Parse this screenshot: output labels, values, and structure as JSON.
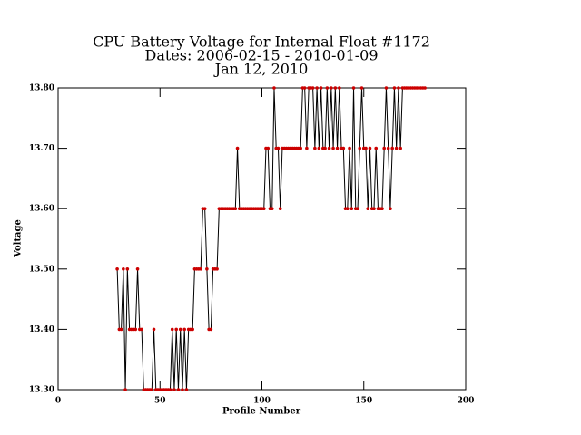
{
  "chart_data": {
    "type": "line",
    "title": "CPU Battery Voltage for Internal Float #1172",
    "subtitle": "Dates:  2006-02-15 -  2010-01-09",
    "annotations": [
      "Jan 12, 2010"
    ],
    "xlabel": "Profile Number",
    "ylabel": "Voltage",
    "xlim": [
      0,
      200
    ],
    "xticks": [
      0,
      50,
      100,
      150,
      200
    ],
    "ylim": [
      13.3,
      13.8
    ],
    "yticks": [
      {
        "value": 13.3,
        "label": "13.30"
      },
      {
        "value": 13.4,
        "label": "13.40"
      },
      {
        "value": 13.5,
        "label": "13.50"
      },
      {
        "value": 13.6,
        "label": "13.60"
      },
      {
        "value": 13.7,
        "label": "13.70"
      },
      {
        "value": 13.8,
        "label": "13.80"
      }
    ],
    "grid": false,
    "series": [
      {
        "color": "#000000",
        "marker_color": "#cc0000",
        "x": [
          29,
          30,
          31,
          32,
          33,
          34,
          35,
          36,
          37,
          38,
          39,
          40,
          41,
          42,
          43,
          44,
          45,
          46,
          47,
          48,
          49,
          50,
          51,
          52,
          53,
          54,
          55,
          56,
          57,
          58,
          59,
          60,
          61,
          62,
          63,
          64,
          65,
          66,
          67,
          68,
          69,
          70,
          71,
          72,
          73,
          74,
          75,
          76,
          77,
          78,
          79,
          80,
          81,
          82,
          83,
          84,
          85,
          86,
          87,
          88,
          89,
          90,
          91,
          92,
          93,
          94,
          95,
          96,
          97,
          98,
          99,
          100,
          101,
          102,
          103,
          104,
          105,
          106,
          107,
          108,
          109,
          110,
          111,
          112,
          113,
          114,
          115,
          116,
          117,
          118,
          119,
          120,
          121,
          122,
          123,
          124,
          125,
          126,
          127,
          128,
          129,
          130,
          131,
          132,
          133,
          134,
          135,
          136,
          137,
          138,
          139,
          140,
          141,
          142,
          143,
          144,
          145,
          146,
          147,
          148,
          149,
          150,
          151,
          152,
          153,
          154,
          155,
          156,
          157,
          158,
          159,
          160,
          161,
          162,
          163,
          164,
          165,
          166,
          167,
          168,
          169,
          170,
          171,
          172,
          173,
          174,
          175,
          176,
          177,
          178,
          179,
          180
        ],
        "values": [
          13.5,
          13.4,
          13.4,
          13.5,
          13.3,
          13.5,
          13.4,
          13.4,
          13.4,
          13.4,
          13.5,
          13.4,
          13.4,
          13.3,
          13.3,
          13.3,
          13.3,
          13.3,
          13.4,
          13.3,
          13.3,
          13.3,
          13.3,
          13.3,
          13.3,
          13.3,
          13.3,
          13.4,
          13.3,
          13.4,
          13.3,
          13.4,
          13.3,
          13.4,
          13.3,
          13.4,
          13.4,
          13.4,
          13.5,
          13.5,
          13.5,
          13.5,
          13.6,
          13.6,
          13.5,
          13.4,
          13.4,
          13.5,
          13.5,
          13.5,
          13.6,
          13.6,
          13.6,
          13.6,
          13.6,
          13.6,
          13.6,
          13.6,
          13.6,
          13.7,
          13.6,
          13.6,
          13.6,
          13.6,
          13.6,
          13.6,
          13.6,
          13.6,
          13.6,
          13.6,
          13.6,
          13.6,
          13.6,
          13.7,
          13.7,
          13.6,
          13.6,
          13.8,
          13.7,
          13.7,
          13.6,
          13.7,
          13.7,
          13.7,
          13.7,
          13.7,
          13.7,
          13.7,
          13.7,
          13.7,
          13.7,
          13.8,
          13.8,
          13.7,
          13.8,
          13.8,
          13.8,
          13.7,
          13.8,
          13.7,
          13.8,
          13.7,
          13.7,
          13.8,
          13.7,
          13.8,
          13.7,
          13.8,
          13.7,
          13.8,
          13.7,
          13.7,
          13.6,
          13.6,
          13.7,
          13.6,
          13.8,
          13.6,
          13.6,
          13.7,
          13.8,
          13.7,
          13.7,
          13.6,
          13.7,
          13.6,
          13.6,
          13.7,
          13.6,
          13.6,
          13.6,
          13.7,
          13.8,
          13.7,
          13.6,
          13.7,
          13.8,
          13.7,
          13.8,
          13.7,
          13.8,
          13.8,
          13.8,
          13.8,
          13.8,
          13.8,
          13.8,
          13.8,
          13.8,
          13.8,
          13.8,
          13.8
        ]
      }
    ]
  }
}
